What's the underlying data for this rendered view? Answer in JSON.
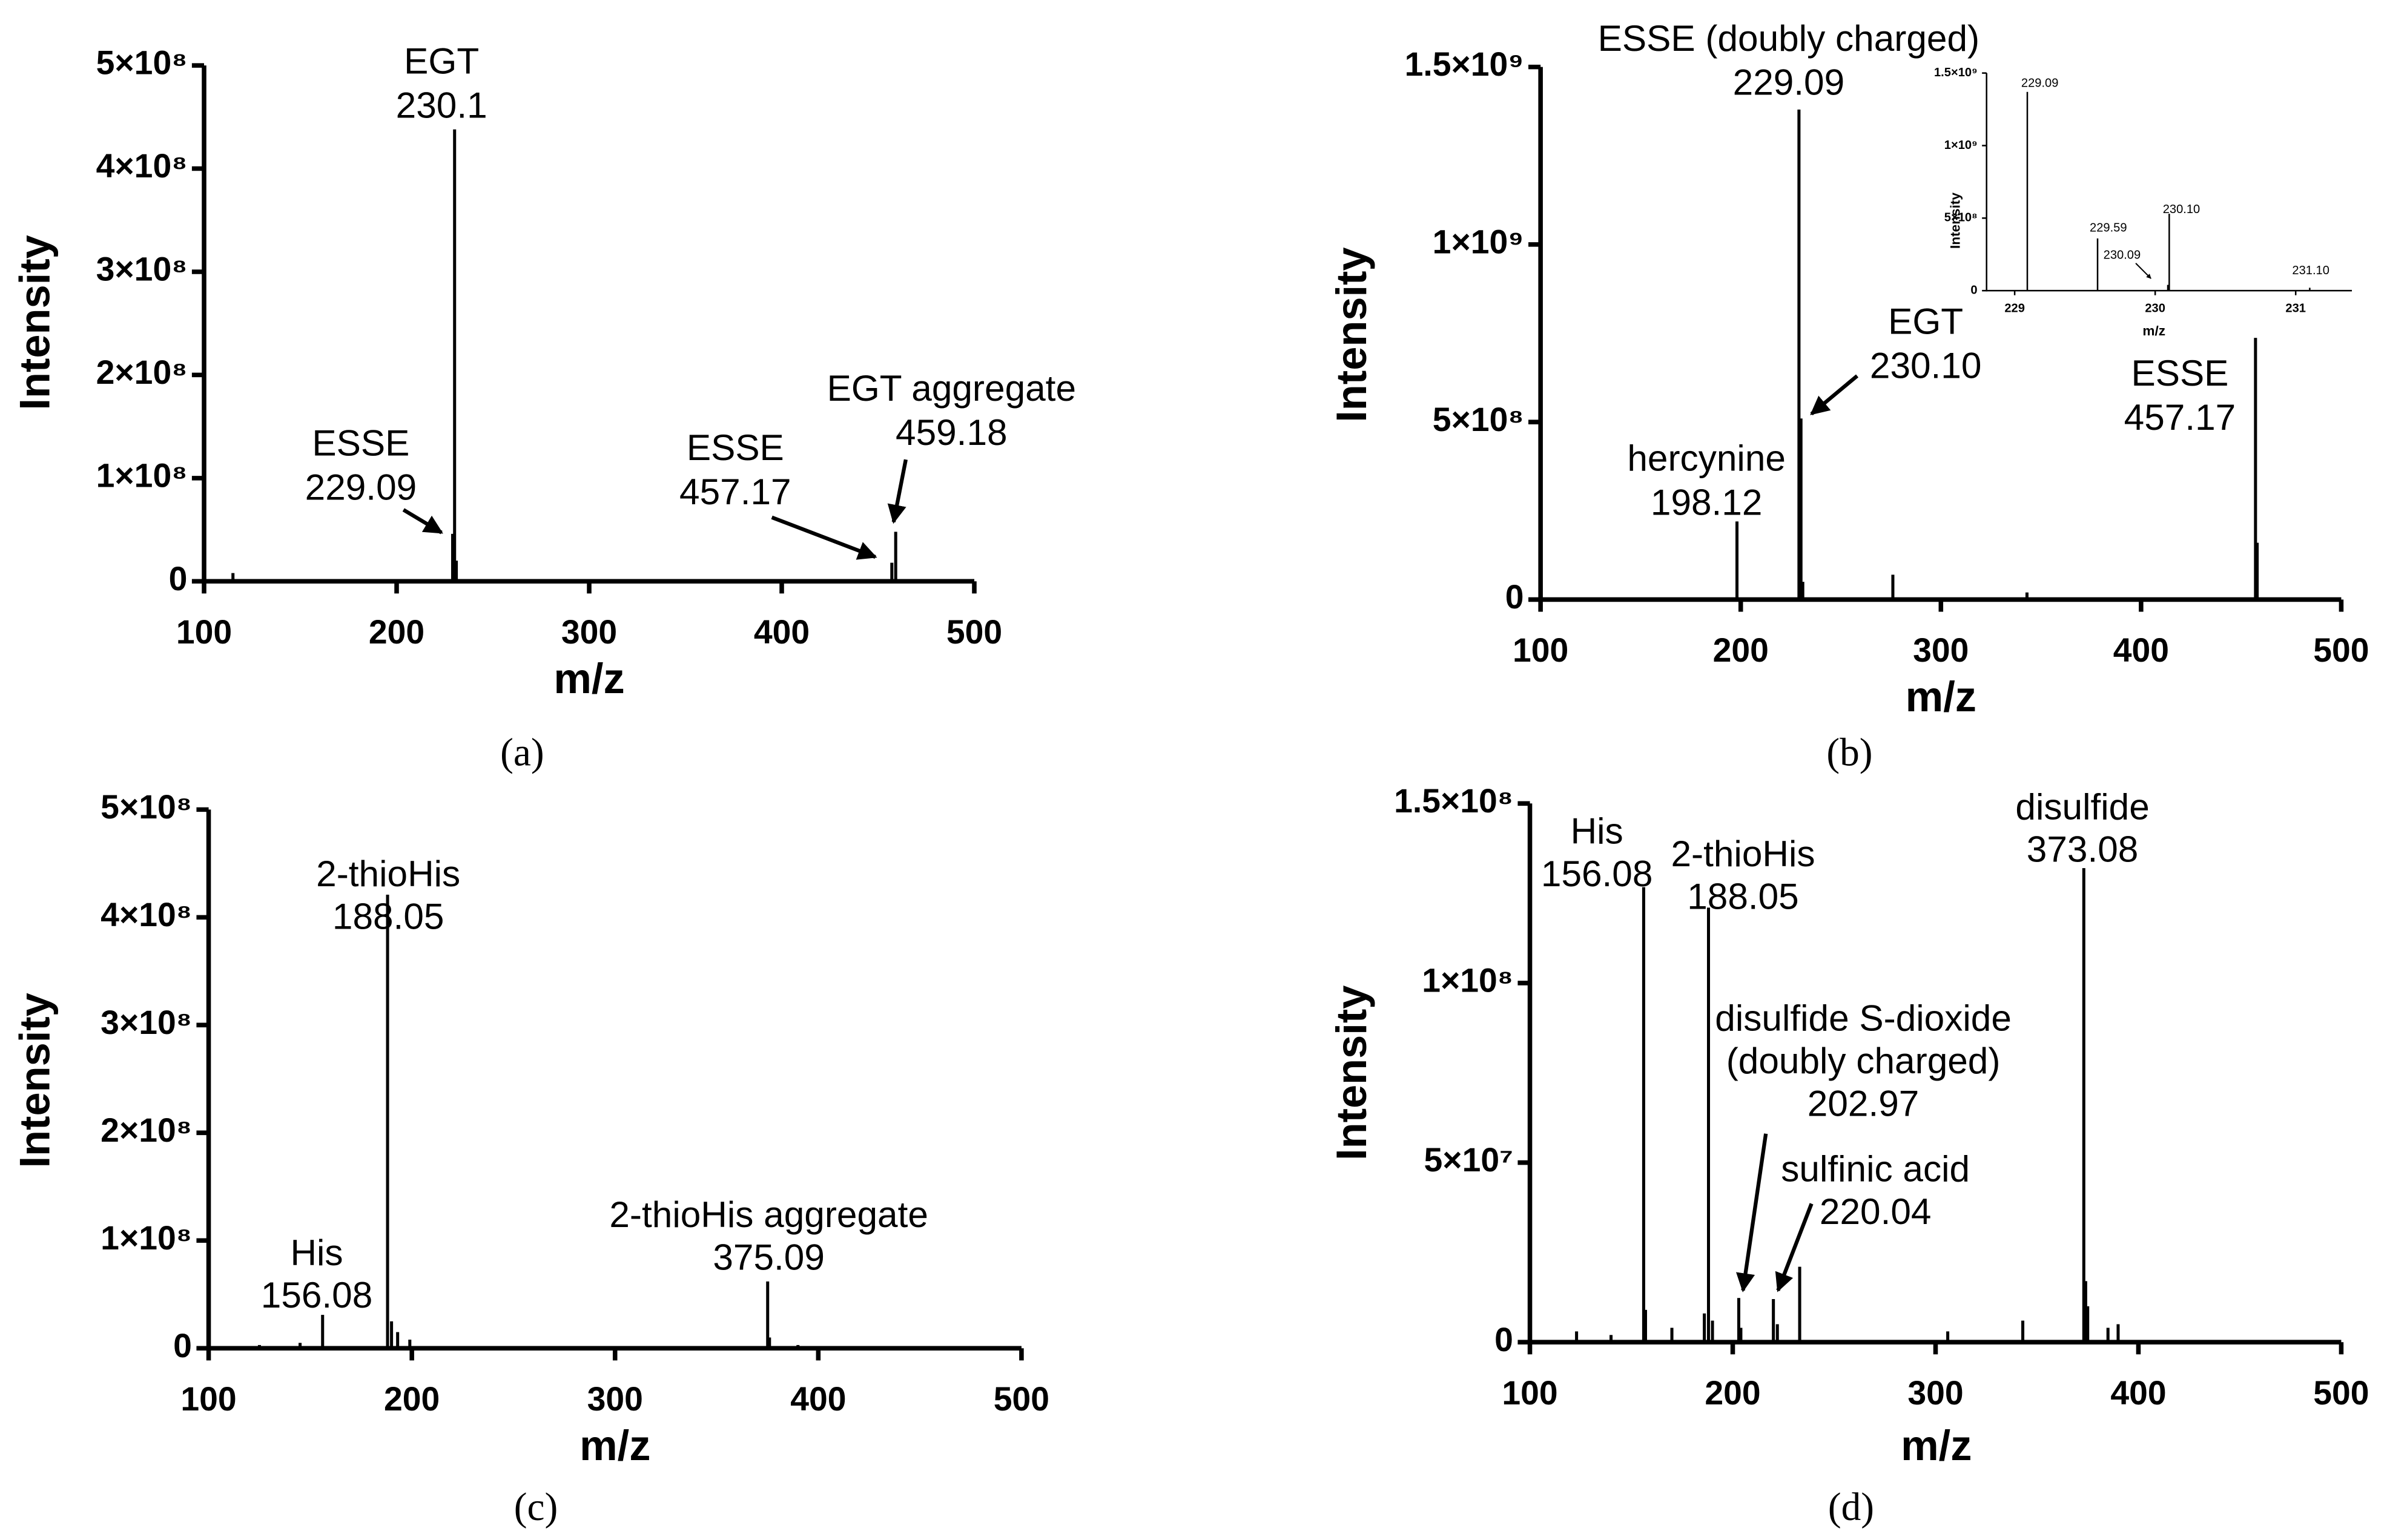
{
  "chart_data": [
    {
      "type": "bar",
      "label": "(a)",
      "xlabel": "m/z",
      "ylabel": "Intensity",
      "color": "#000000",
      "x": [
        115,
        193,
        229.09,
        230.1,
        231,
        341,
        457.17,
        459.18
      ],
      "values": [
        8000000,
        2000000,
        46000000,
        438000000,
        20000000,
        2000000,
        18000000,
        48000000
      ],
      "xlim": [
        100,
        500
      ],
      "xticks": [
        100,
        200,
        300,
        400,
        500
      ],
      "ylim": [
        0,
        500000000
      ],
      "yticks": [
        0,
        {
          "value": 100000000,
          "label": "1×10⁸"
        },
        {
          "value": 200000000,
          "label": "2×10⁸"
        },
        {
          "value": 300000000,
          "label": "3×10⁸"
        },
        {
          "value": 400000000,
          "label": "4×10⁸"
        },
        {
          "value": 500000000,
          "label": "5×10⁸"
        }
      ],
      "annotations": [
        {
          "lines": [
            "EGT",
            "230.1"
          ]
        },
        {
          "lines": [
            "ESSE",
            "229.09"
          ]
        },
        {
          "lines": [
            "EGT aggregate",
            "459.18"
          ]
        },
        {
          "lines": [
            "ESSE",
            "457.17"
          ]
        }
      ]
    },
    {
      "type": "bar",
      "label": "(b)",
      "xlabel": "m/z",
      "ylabel": "Intensity",
      "color": "#000000",
      "x": [
        198.12,
        229.09,
        230.1,
        231,
        276,
        343,
        457.17,
        458
      ],
      "values": [
        220000000,
        1380000000,
        510000000,
        50000000,
        70000000,
        20000000,
        737000000,
        160000000
      ],
      "xlim": [
        100,
        500
      ],
      "xticks": [
        100,
        200,
        300,
        400,
        500
      ],
      "ylim": [
        0,
        1500000000
      ],
      "yticks": [
        0,
        {
          "value": 500000000,
          "label": "5×10⁸"
        },
        {
          "value": 1000000000,
          "label": "1×10⁹"
        },
        {
          "value": 1500000000,
          "label": "1.5×10⁹"
        }
      ],
      "annotations": [
        {
          "lines": [
            "ESSE (doubly charged)",
            "229.09"
          ]
        },
        {
          "lines": [
            "EGT",
            "230.10"
          ]
        },
        {
          "lines": [
            "hercynine",
            "198.12"
          ]
        },
        {
          "lines": [
            "ESSE",
            "457.17"
          ]
        }
      ]
    },
    {
      "type": "bar",
      "label": "(c)",
      "xlabel": "m/z",
      "ylabel": "Intensity",
      "color": "#000000",
      "x": [
        125,
        145,
        156.08,
        188.05,
        190,
        193,
        199,
        235,
        375.09,
        376,
        390
      ],
      "values": [
        3000000,
        5000000,
        31000000,
        421000000,
        25000000,
        15000000,
        8000000,
        2000000,
        62000000,
        10000000,
        3000000
      ],
      "xlim": [
        100,
        500
      ],
      "xticks": [
        100,
        200,
        300,
        400,
        500
      ],
      "ylim": [
        0,
        500000000
      ],
      "yticks": [
        0,
        {
          "value": 100000000,
          "label": "1×10⁸"
        },
        {
          "value": 200000000,
          "label": "2×10⁸"
        },
        {
          "value": 300000000,
          "label": "3×10⁸"
        },
        {
          "value": 400000000,
          "label": "4×10⁸"
        },
        {
          "value": 500000000,
          "label": "5×10⁸"
        }
      ],
      "annotations": [
        {
          "lines": [
            "2-thioHis",
            "188.05"
          ]
        },
        {
          "lines": [
            "His",
            "156.08"
          ]
        },
        {
          "lines": [
            "2-thioHis aggregate",
            "375.09"
          ]
        }
      ]
    },
    {
      "type": "bar",
      "label": "(d)",
      "xlabel": "m/z",
      "ylabel": "Intensity",
      "color": "#000000",
      "x": [
        123,
        140,
        156.08,
        157,
        170,
        186,
        188.05,
        190,
        202.97,
        204,
        220.04,
        222,
        233,
        306,
        343,
        373.08,
        374,
        375,
        385,
        390
      ],
      "values": [
        3000000,
        2000000,
        126700000,
        9000000,
        4000000,
        8000000,
        121000000,
        6000000,
        12300000,
        4000000,
        12000000,
        5000000,
        21000000,
        3000000,
        6000000,
        132000000,
        17000000,
        10000000,
        4000000,
        5000000
      ],
      "xlim": [
        100,
        500
      ],
      "xticks": [
        100,
        200,
        300,
        400,
        500
      ],
      "ylim": [
        0,
        150000000
      ],
      "yticks": [
        0,
        {
          "value": 50000000,
          "label": "5×10⁷"
        },
        {
          "value": 100000000,
          "label": "1×10⁸"
        },
        {
          "value": 150000000,
          "label": "1.5×10⁸"
        }
      ],
      "annotations": [
        {
          "lines": [
            "His",
            "156.08"
          ]
        },
        {
          "lines": [
            "2-thioHis",
            "188.05"
          ]
        },
        {
          "lines": [
            "disulfide",
            "373.08"
          ]
        },
        {
          "lines": [
            "disulfide S-dioxide",
            "(doubly charged)",
            "202.97"
          ]
        },
        {
          "lines": [
            "sulfinic acid",
            "220.04"
          ]
        }
      ]
    },
    {
      "type": "bar",
      "xlabel": "m/z",
      "ylabel": "Intensity",
      "color": "#000000",
      "x": [
        229.09,
        229.59,
        230.09,
        230.1,
        231.1
      ],
      "values": [
        1370000000,
        360000000,
        40000000,
        530000000,
        20000000
      ],
      "xlim": [
        228.8,
        231.4
      ],
      "xticks": [
        229,
        230,
        231
      ],
      "ylim": [
        0,
        1500000000
      ],
      "yticks": [
        0,
        {
          "value": 500000000,
          "label": "5×10⁸"
        },
        {
          "value": 1000000000,
          "label": "1×10⁹"
        },
        {
          "value": 1500000000,
          "label": "1.5×10⁹"
        }
      ],
      "annotations": [
        {
          "lines": [
            "229.09"
          ]
        },
        {
          "lines": [
            "229.59"
          ]
        },
        {
          "lines": [
            "230.10"
          ]
        },
        {
          "lines": [
            "230.09"
          ]
        },
        {
          "lines": [
            "231.10"
          ]
        }
      ]
    }
  ]
}
